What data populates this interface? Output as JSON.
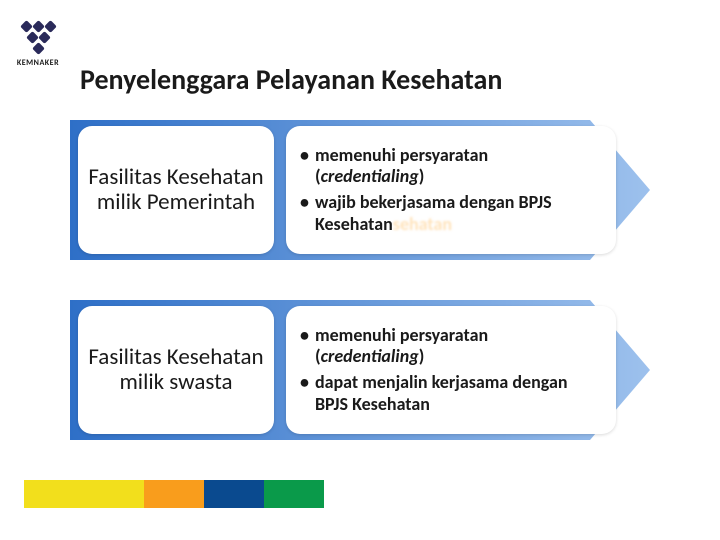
{
  "logo": {
    "label": "KEMNAKER",
    "color": "#2a2a5a"
  },
  "title": "Penyelenggara Pelayanan Kesehatan",
  "arrow_gradient": {
    "from": "#2e6fc7",
    "to": "#9dc1ed"
  },
  "rows": [
    {
      "box_title": "Fasilitas Kesehatan milik Pemerintah",
      "bullets": [
        {
          "segments": [
            {
              "kind": "normal",
              "t": "memenuhi persyaratan ("
            },
            {
              "kind": "italic",
              "t": "credentialing"
            },
            {
              "kind": "normal",
              "t": ")"
            }
          ]
        },
        {
          "segments": [
            {
              "kind": "normal",
              "t": "wajib bekerjasama dengan BPJS Kesehatan"
            },
            {
              "kind": "ghost",
              "t": "sehatan"
            }
          ]
        }
      ]
    },
    {
      "box_title": "Fasilitas Kesehatan milik swasta",
      "bullets": [
        {
          "segments": [
            {
              "kind": "normal",
              "t": "memenuhi persyaratan ("
            },
            {
              "kind": "italic",
              "t": "credentialing"
            },
            {
              "kind": "normal",
              "t": ")"
            }
          ]
        },
        {
          "segments": [
            {
              "kind": "normal",
              "t": "dapat menjalin kerjasama dengan BPJS Kesehatan"
            }
          ]
        }
      ]
    }
  ],
  "footer_colors": [
    "#f2df1c",
    "#f99d1c",
    "#0a4a8f",
    "#0a9a4a"
  ],
  "footer_widths": [
    120,
    60,
    60,
    60
  ]
}
